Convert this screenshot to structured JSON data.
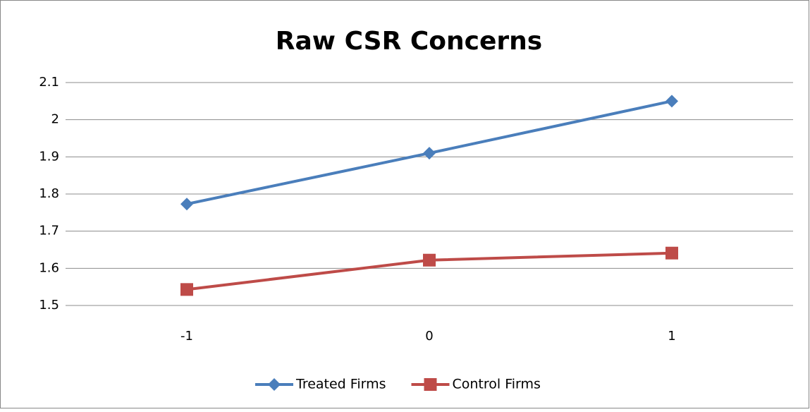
{
  "chart_data": {
    "type": "line",
    "title": "Raw CSR Concerns",
    "categories": [
      "-1",
      "0",
      "1"
    ],
    "series": [
      {
        "name": "Treated Firms",
        "color": "#4a7ebb",
        "marker": "diamond",
        "values": [
          1.773,
          1.91,
          2.05
        ]
      },
      {
        "name": "Control Firms",
        "color": "#be4b48",
        "marker": "square",
        "values": [
          1.543,
          1.622,
          1.641
        ]
      }
    ],
    "ylim": [
      1.5,
      2.1
    ],
    "yticks": [
      1.5,
      1.6,
      1.7,
      1.8,
      1.9,
      2,
      2.1
    ],
    "grid": true,
    "legend": "bottom"
  }
}
